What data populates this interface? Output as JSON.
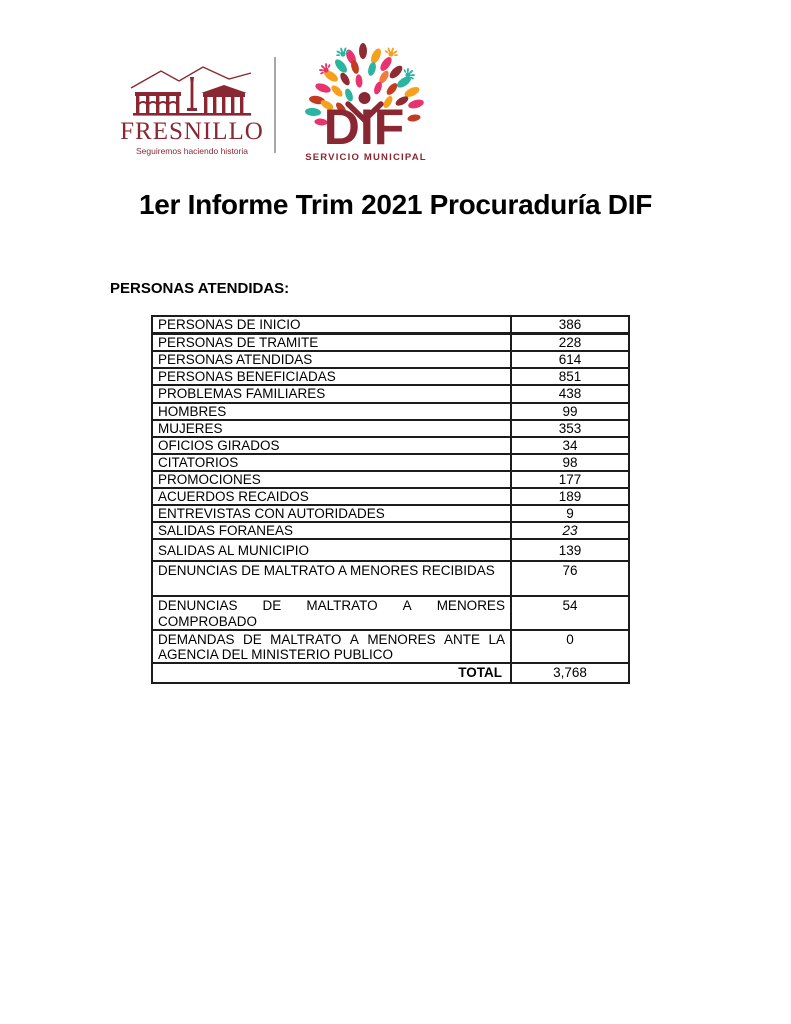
{
  "header": {
    "fresnillo_logo": {
      "icon": "fresnillo-building-icon",
      "name": "FRESNILLO",
      "tagline": "Seguiremos haciendo historia",
      "color": "#892832"
    },
    "dif_logo": {
      "icon": "dif-tree-icon",
      "name": "DIF",
      "subtitle": "SERVICIO MUNICIPAL",
      "color": "#892832",
      "leaf_colors": [
        "#8e2b33",
        "#e8336d",
        "#f5a11d",
        "#2bb5a0",
        "#c23b22",
        "#f07c3f"
      ]
    }
  },
  "title": "1er Informe Trim 2021 Procuraduría DIF",
  "section_heading": "PERSONAS ATENDIDAS:",
  "table": {
    "rows": [
      {
        "label": "PERSONAS DE INICIO",
        "value": "386",
        "first": true
      },
      {
        "label": "PERSONAS DE TRAMITE",
        "value": "228"
      },
      {
        "label": "PERSONAS ATENDIDAS",
        "value": "614"
      },
      {
        "label": "PERSONAS BENEFICIADAS",
        "value": "851"
      },
      {
        "label": "PROBLEMAS FAMILIARES",
        "value": "438"
      },
      {
        "label": "HOMBRES",
        "value": "99"
      },
      {
        "label": "MUJERES",
        "value": "353"
      },
      {
        "label": "OFICIOS GIRADOS",
        "value": "34"
      },
      {
        "label": "CITATORIOS",
        "value": "98"
      },
      {
        "label": "PROMOCIONES",
        "value": "177"
      },
      {
        "label": "ACUERDOS RECAIDOS",
        "value": "189"
      },
      {
        "label": "ENTREVISTAS CON AUTORIDADES",
        "value": "9"
      },
      {
        "label": "SALIDAS FORANEAS",
        "value": "23",
        "value_italic": true
      },
      {
        "label": "SALIDAS AL MUNICIPIO",
        "value": "139",
        "height": "medium"
      },
      {
        "label": "DENUNCIAS DE MALTRATO A MENORES RECIBIDAS",
        "value": "76",
        "height": "tall"
      },
      {
        "lines": [
          "DENUNCIAS DE MALTRATO A MENORES",
          "COMPROBADO"
        ],
        "label": "DENUNCIAS DE MALTRATO A MENORES COMPROBADO",
        "value": "54",
        "height": "top"
      },
      {
        "lines": [
          "DEMANDAS DE MALTRATO A MENORES ANTE LA",
          "AGENCIA DEL MINISTERIO PUBLICO"
        ],
        "label": "DEMANDAS DE MALTRATO A MENORES ANTE LA AGENCIA DEL MINISTERIO PUBLICO",
        "value": "0",
        "height": "top"
      },
      {
        "label": "TOTAL",
        "value": "3,768",
        "total": true
      }
    ]
  }
}
